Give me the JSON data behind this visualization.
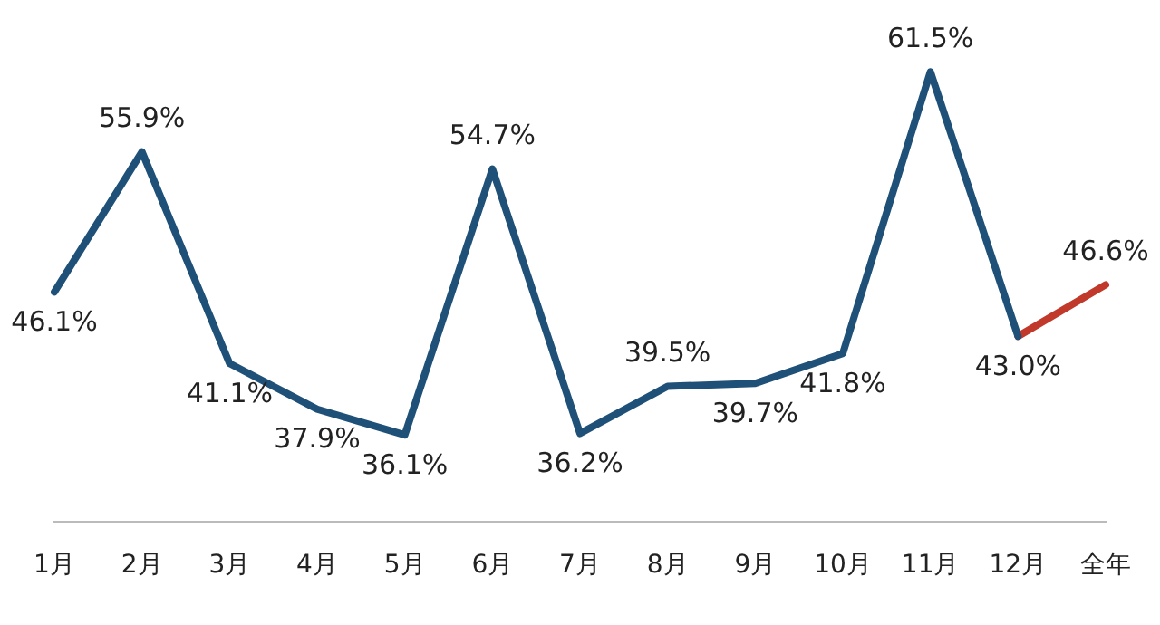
{
  "chart_data": {
    "type": "line",
    "categories": [
      "1月",
      "2月",
      "3月",
      "4月",
      "5月",
      "6月",
      "7月",
      "8月",
      "9月",
      "10月",
      "11月",
      "12月",
      "全年"
    ],
    "series": [
      {
        "color": "#1f5078",
        "values": [
          46.1,
          55.9,
          41.1,
          37.9,
          36.1,
          54.7,
          36.2,
          39.5,
          39.7,
          41.8,
          61.5,
          43.0,
          null
        ],
        "value_labels": [
          "46.1%",
          "55.9%",
          "41.1%",
          "37.9%",
          "36.1%",
          "54.7%",
          "36.2%",
          "39.5%",
          "39.7%",
          "41.8%",
          "61.5%",
          "43.0%",
          null
        ]
      },
      {
        "color": "#c0392b",
        "values": [
          null,
          null,
          null,
          null,
          null,
          null,
          null,
          null,
          null,
          null,
          null,
          43.0,
          46.6
        ],
        "value_labels": [
          null,
          null,
          null,
          null,
          null,
          null,
          null,
          null,
          null,
          null,
          null,
          null,
          "46.6%"
        ]
      }
    ],
    "tick_labels": "x",
    "grid": false,
    "legend": false,
    "marker": "none",
    "line_style": "solid"
  }
}
